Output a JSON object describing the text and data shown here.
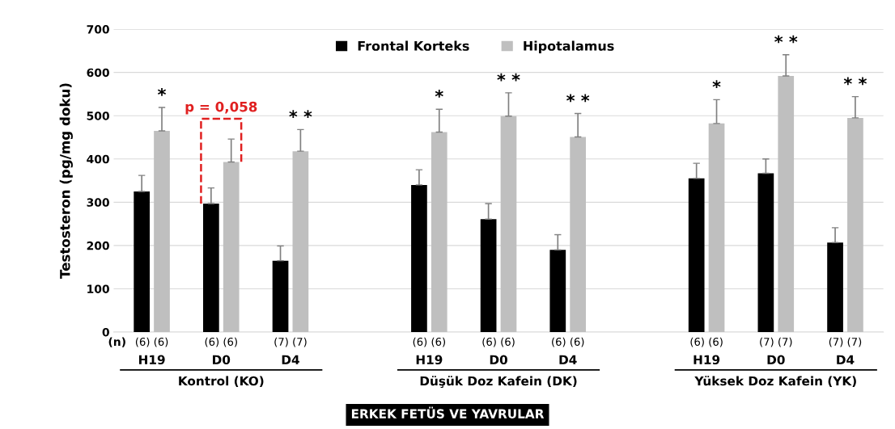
{
  "chart_data": {
    "type": "bar",
    "ylabel": "Testosteron (pg/mg doku)",
    "categories": [
      "H19",
      "D0",
      "D4",
      null,
      "H19",
      "D0",
      "D4",
      null,
      "H19",
      "D0",
      "D4"
    ],
    "series": [
      {
        "name": "Frontal Korteks",
        "color": "#000000",
        "values": [
          325,
          297,
          165,
          null,
          340,
          261,
          190,
          null,
          355,
          367,
          207
        ],
        "errors": [
          [
            325,
            362
          ],
          [
            297,
            333
          ],
          [
            165,
            199
          ],
          null,
          [
            340,
            375
          ],
          [
            261,
            297
          ],
          [
            190,
            225
          ],
          null,
          [
            355,
            390
          ],
          [
            367,
            400
          ],
          [
            207,
            241
          ]
        ]
      },
      {
        "name": "Hipotalamus",
        "color": "#bfbfbf",
        "values": [
          465,
          393,
          418,
          null,
          462,
          499,
          451,
          null,
          482,
          592,
          495
        ],
        "errors": [
          [
            465,
            519
          ],
          [
            393,
            446
          ],
          [
            418,
            468
          ],
          null,
          [
            462,
            515
          ],
          [
            499,
            553
          ],
          [
            451,
            505
          ],
          null,
          [
            482,
            537
          ],
          [
            592,
            641
          ],
          [
            495,
            544
          ]
        ],
        "value_labels": [
          "*",
          null,
          "* *",
          null,
          "*",
          "* *",
          "* *",
          null,
          "*",
          "* *",
          "* *"
        ]
      }
    ],
    "ylim": [
      0,
      700
    ],
    "yticks": [
      0,
      100,
      200,
      300,
      400,
      500,
      600,
      700
    ],
    "grid": "y",
    "legend": "top",
    "annotations": [
      "(n)",
      "(6) (6)",
      "(6) (6)",
      "(7) (7)",
      "(6) (6)",
      "(6) (6)",
      "(6) (6)",
      "(6) (6)",
      "(7) (7)",
      "(7) (7)",
      "Kontrol (KO)",
      "Düşük Doz Kafein (DK)",
      "Yüksek Doz Kafein (YK)",
      "ERKEK FETÜS VE YAVRULAR",
      "p = 0,058"
    ]
  }
}
